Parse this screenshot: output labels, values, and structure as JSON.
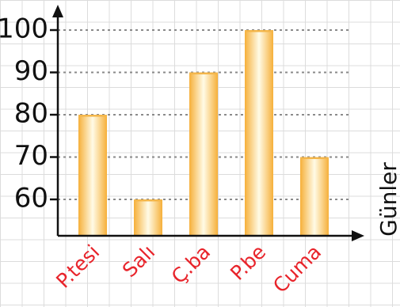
{
  "chart_data": {
    "type": "bar",
    "categories": [
      "P.tesi",
      "Salı",
      "Ç.ba",
      "P.be",
      "Cuma"
    ],
    "values": [
      80,
      60,
      90,
      100,
      70
    ],
    "yticks": [
      60,
      70,
      80,
      90,
      100
    ],
    "ylim": [
      50,
      103
    ],
    "xlabel": "Günler",
    "ylabel": "",
    "title": "",
    "grid": "dotted horizontal lines at each tick",
    "colors": {
      "bar_center": "#fffbe6",
      "bar_edge": "#f6b03a",
      "bar_top": "#f4b64a",
      "category_label": "#e8242b",
      "axis": "#111111",
      "gridline": "#8a8a8a"
    }
  }
}
